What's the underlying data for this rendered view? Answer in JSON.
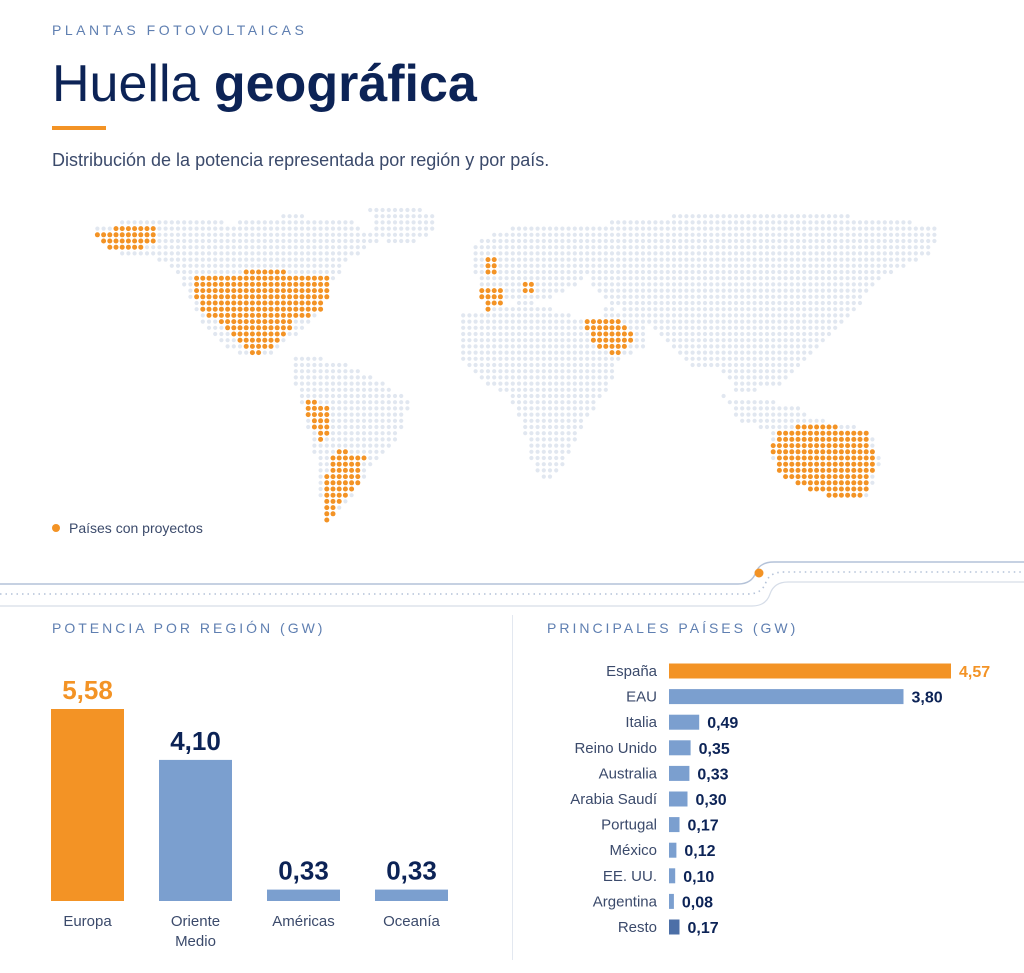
{
  "header": {
    "eyebrow": "PLANTAS FOTOVOLTAICAS",
    "title_light": "Huella ",
    "title_bold": "geográfica",
    "subtitle": "Distribución de la potencia representada por región y por país."
  },
  "map": {
    "legend_label": "Países con proyectos",
    "colors": {
      "project": "#f39325",
      "land": "#e1e7f0"
    }
  },
  "colors": {
    "accent": "#f39325",
    "secondary": "#7b9fcf",
    "dark": "#0c2356",
    "rest": "#4c6fa7"
  },
  "chart_data": [
    {
      "type": "bar",
      "title": "POTENCIA POR REGIÓN (GW)",
      "categories": [
        "Europa",
        "Oriente Medio",
        "Américas",
        "Oceanía"
      ],
      "display_labels": [
        "5,58",
        "4,10",
        "0,33",
        "0,33"
      ],
      "values": [
        5.58,
        4.1,
        0.33,
        0.33
      ],
      "xlabel": "",
      "ylabel": ""
    },
    {
      "type": "bar",
      "orientation": "horizontal",
      "title": "PRINCIPALES PAÍSES (GW)",
      "categories": [
        "España",
        "EAU",
        "Italia",
        "Reino Unido",
        "Australia",
        "Arabia Saudí",
        "Portugal",
        "México",
        "EE. UU.",
        "Argentina",
        "Resto"
      ],
      "display_labels": [
        "4,57",
        "3,80",
        "0,49",
        "0,35",
        "0,33",
        "0,30",
        "0,17",
        "0,12",
        "0,10",
        "0,08",
        "0,17"
      ],
      "values": [
        4.57,
        3.8,
        0.49,
        0.35,
        0.33,
        0.3,
        0.17,
        0.12,
        0.1,
        0.08,
        0.17
      ],
      "xlabel": "",
      "ylabel": ""
    }
  ]
}
